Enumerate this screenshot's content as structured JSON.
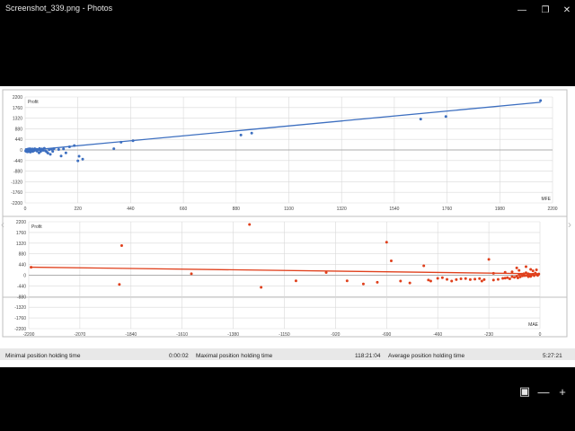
{
  "window": {
    "title": "Screenshot_339.png - Photos",
    "minimize_icon": "minimize-icon",
    "restore_icon": "restore-icon",
    "close_icon": "close-icon"
  },
  "colors": {
    "mfe_series": "#3d6fc0",
    "mae_series": "#e0401c",
    "grid": "#d9d9d9",
    "status_bg": "#e8e8e8"
  },
  "chart_data": [
    {
      "type": "scatter",
      "title": "Profit",
      "xlabel": "MFE",
      "ylabel": "Profit",
      "xlim": [
        0,
        2200
      ],
      "ylim": [
        -2200,
        2200
      ],
      "x_ticks": [
        "0",
        "220",
        "440",
        "660",
        "880",
        "1100",
        "1320",
        "1540",
        "1760",
        "1980",
        "2200"
      ],
      "y_ticks": [
        "2200",
        "1760",
        "1320",
        "880",
        "440",
        "0",
        "-440",
        "-880",
        "-1320",
        "-1760",
        "-2200"
      ],
      "trendline": {
        "x": [
          0,
          2150
        ],
        "y": [
          -30,
          1980
        ]
      },
      "series": [
        {
          "values": [
            [
              2,
              -40
            ],
            [
              4,
              20
            ],
            [
              5,
              -60
            ],
            [
              6,
              -20
            ],
            [
              8,
              10
            ],
            [
              9,
              -80
            ],
            [
              10,
              30
            ],
            [
              11,
              -50
            ],
            [
              12,
              -10
            ],
            [
              14,
              40
            ],
            [
              15,
              -70
            ],
            [
              16,
              0
            ],
            [
              18,
              20
            ],
            [
              19,
              -30
            ],
            [
              20,
              50
            ],
            [
              22,
              -90
            ],
            [
              24,
              10
            ],
            [
              25,
              -40
            ],
            [
              27,
              30
            ],
            [
              28,
              -20
            ],
            [
              30,
              40
            ],
            [
              32,
              -60
            ],
            [
              34,
              10
            ],
            [
              36,
              20
            ],
            [
              38,
              -30
            ],
            [
              40,
              50
            ],
            [
              42,
              -10
            ],
            [
              45,
              0
            ],
            [
              48,
              30
            ],
            [
              50,
              -50
            ],
            [
              55,
              20
            ],
            [
              58,
              -120
            ],
            [
              60,
              60
            ],
            [
              62,
              -10
            ],
            [
              65,
              -60
            ],
            [
              68,
              20
            ],
            [
              70,
              40
            ],
            [
              75,
              -20
            ],
            [
              80,
              70
            ],
            [
              85,
              -40
            ],
            [
              90,
              -80
            ],
            [
              95,
              -130
            ],
            [
              100,
              10
            ],
            [
              105,
              -180
            ],
            [
              110,
              30
            ],
            [
              115,
              -60
            ],
            [
              120,
              50
            ],
            [
              140,
              20
            ],
            [
              150,
              -250
            ],
            [
              160,
              40
            ],
            [
              170,
              -120
            ],
            [
              185,
              130
            ],
            [
              205,
              180
            ],
            [
              220,
              -450
            ],
            [
              225,
              -260
            ],
            [
              240,
              -380
            ],
            [
              370,
              50
            ],
            [
              400,
              320
            ],
            [
              450,
              380
            ],
            [
              900,
              620
            ],
            [
              945,
              700
            ],
            [
              1650,
              1280
            ],
            [
              1755,
              1390
            ],
            [
              2150,
              2050
            ]
          ]
        }
      ]
    },
    {
      "type": "scatter",
      "title": "Profit",
      "xlabel": "MAE",
      "ylabel": "Profit",
      "xlim": [
        -2200,
        0
      ],
      "ylim": [
        -2200,
        2200
      ],
      "x_ticks": [
        "-2200",
        "-2070",
        "-1840",
        "-1610",
        "-1380",
        "-1150",
        "-920",
        "-690",
        "-460",
        "-230",
        "0"
      ],
      "y_ticks": [
        "2200",
        "1760",
        "1320",
        "880",
        "440",
        "0",
        "-440",
        "-880",
        "-1320",
        "-1760",
        "-2200"
      ],
      "trendline": {
        "x": [
          -2190,
          0
        ],
        "y": [
          330,
          60
        ]
      },
      "series": [
        {
          "values": [
            [
              -2190,
              330
            ],
            [
              -1800,
              1220
            ],
            [
              -1810,
              -380
            ],
            [
              -1500,
              60
            ],
            [
              -1250,
              2090
            ],
            [
              -1200,
              -500
            ],
            [
              -1050,
              -230
            ],
            [
              -920,
              110
            ],
            [
              -830,
              -230
            ],
            [
              -760,
              -360
            ],
            [
              -700,
              -290
            ],
            [
              -660,
              1360
            ],
            [
              -640,
              590
            ],
            [
              -600,
              -240
            ],
            [
              -560,
              -320
            ],
            [
              -500,
              390
            ],
            [
              -480,
              -200
            ],
            [
              -470,
              -240
            ],
            [
              -440,
              -130
            ],
            [
              -420,
              -100
            ],
            [
              -400,
              -170
            ],
            [
              -380,
              -240
            ],
            [
              -360,
              -180
            ],
            [
              -340,
              -150
            ],
            [
              -320,
              -140
            ],
            [
              -300,
              -180
            ],
            [
              -280,
              -160
            ],
            [
              -260,
              -140
            ],
            [
              -250,
              -240
            ],
            [
              -240,
              -180
            ],
            [
              -220,
              650
            ],
            [
              -200,
              -200
            ],
            [
              -180,
              -170
            ],
            [
              -160,
              -130
            ],
            [
              -150,
              -120
            ],
            [
              -140,
              -100
            ],
            [
              -130,
              -150
            ],
            [
              -120,
              -60
            ],
            [
              -110,
              -90
            ],
            [
              -100,
              -40
            ],
            [
              -95,
              -110
            ],
            [
              -90,
              20
            ],
            [
              -85,
              -70
            ],
            [
              -80,
              40
            ],
            [
              -75,
              -30
            ],
            [
              -70,
              60
            ],
            [
              -65,
              -20
            ],
            [
              -60,
              100
            ],
            [
              -55,
              -10
            ],
            [
              -50,
              60
            ],
            [
              -45,
              20
            ],
            [
              -40,
              -50
            ],
            [
              -35,
              10
            ],
            [
              -30,
              40
            ],
            [
              -25,
              -20
            ],
            [
              -20,
              90
            ],
            [
              -15,
              30
            ],
            [
              -10,
              -10
            ],
            [
              -5,
              50
            ],
            [
              -150,
              120
            ],
            [
              -90,
              200
            ],
            [
              -60,
              350
            ],
            [
              -40,
              240
            ],
            [
              -100,
              300
            ],
            [
              -120,
              140
            ],
            [
              -200,
              80
            ],
            [
              -30,
              180
            ],
            [
              -15,
              220
            ],
            [
              -50,
              -60
            ]
          ]
        }
      ]
    }
  ],
  "status": {
    "min_label": "Minimal position holding time",
    "min_value": "0:00:02",
    "max_label": "Maximal position holding time",
    "max_value": "118:21:04",
    "avg_label": "Average position holding time",
    "avg_value": "5:27:21"
  },
  "viewer": {
    "prev_icon": "chevron-left-icon",
    "next_icon": "chevron-right-icon",
    "fit_icon": "fit-screen-icon",
    "zoom_out_icon": "zoom-out-icon",
    "zoom_in_icon": "zoom-in-icon"
  }
}
